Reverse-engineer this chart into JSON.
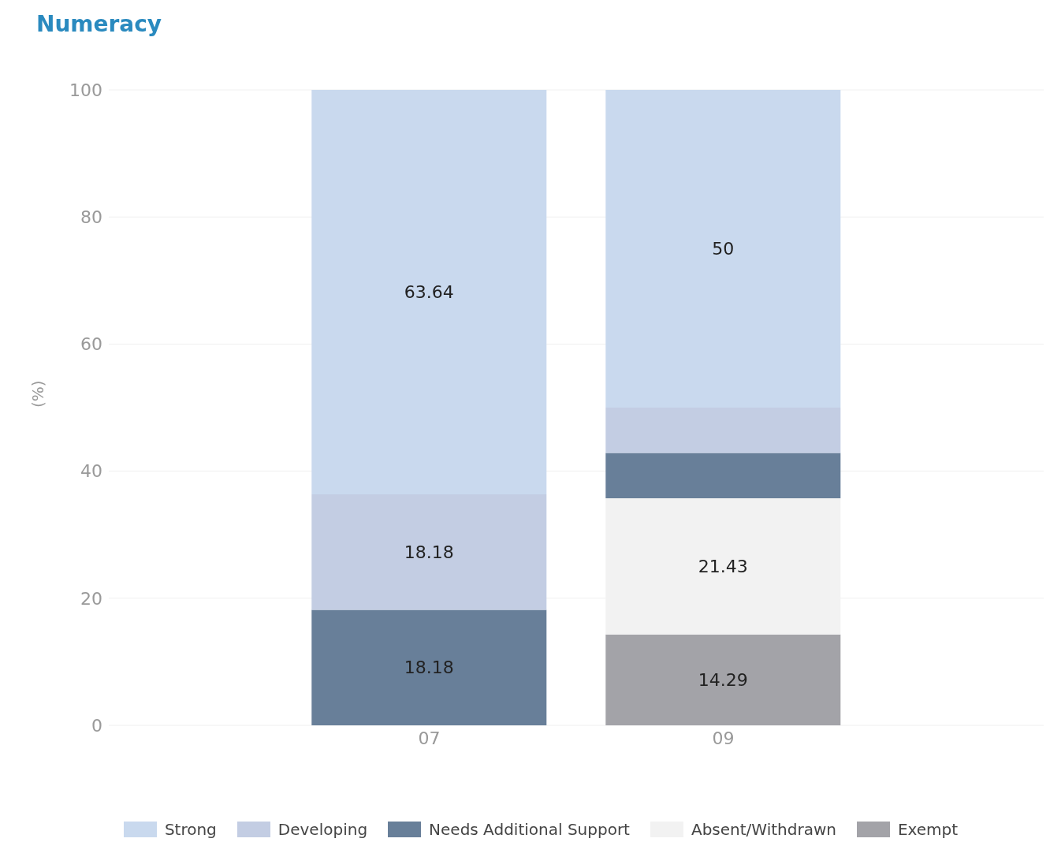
{
  "chart_data": {
    "type": "bar",
    "title": "Numeracy",
    "ylabel": "(%)",
    "categories": [
      "07",
      "09"
    ],
    "stacked": true,
    "ylim": [
      0,
      100
    ],
    "yticks": [
      0,
      20,
      40,
      60,
      80,
      100
    ],
    "grid": "y",
    "legend": "bottom",
    "series": [
      {
        "name": "Exempt",
        "color": "#a3a3a8",
        "values": [
          null,
          14.29
        ],
        "value_labels": [
          null,
          "14.29"
        ]
      },
      {
        "name": "Absent/Withdrawn",
        "color": "#f2f2f2",
        "values": [
          null,
          21.43
        ],
        "value_labels": [
          null,
          "21.43"
        ]
      },
      {
        "name": "Needs Additional Support",
        "color": "#687f99",
        "values": [
          18.18,
          7.14
        ],
        "value_labels": [
          "18.18",
          null
        ]
      },
      {
        "name": "Developing",
        "color": "#c3cde3",
        "values": [
          18.18,
          7.14
        ],
        "value_labels": [
          "18.18",
          null
        ]
      },
      {
        "name": "Strong",
        "color": "#c9d9ee",
        "values": [
          63.64,
          50
        ],
        "value_labels": [
          "63.64",
          "50"
        ]
      }
    ]
  }
}
